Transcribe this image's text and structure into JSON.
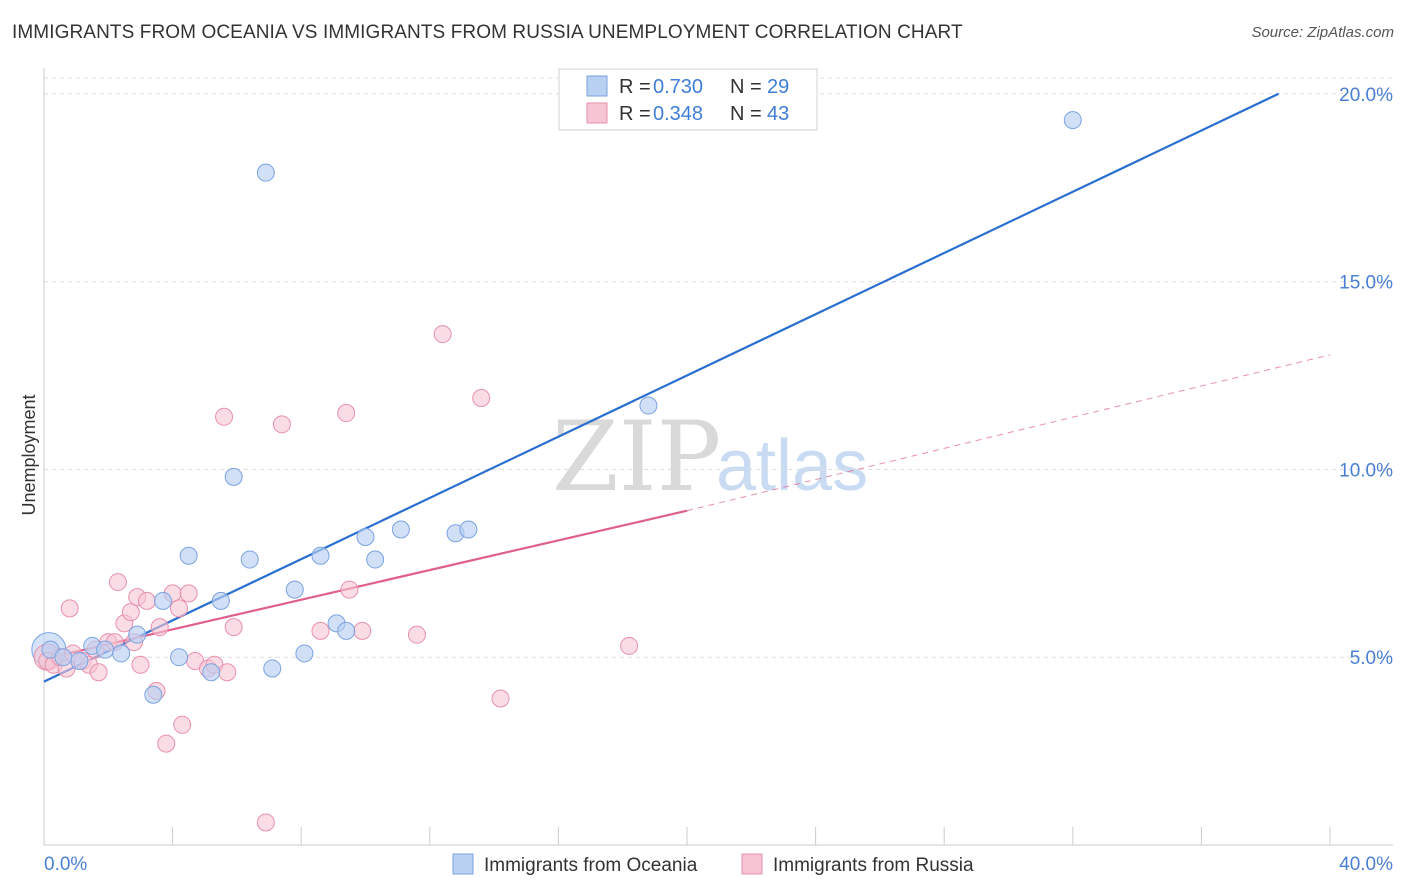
{
  "title": "IMMIGRANTS FROM OCEANIA VS IMMIGRANTS FROM RUSSIA UNEMPLOYMENT CORRELATION CHART",
  "source": "Source: ZipAtlas.com",
  "watermark": {
    "zip": "ZIP",
    "atlas": "atlas"
  },
  "colors": {
    "blue_fill": "#b8d0f2",
    "blue_stroke": "#7aa3e0",
    "blue_line": "#2a6fd0",
    "pink_fill": "#f7c4d4",
    "pink_stroke": "#e890ad",
    "pink_line": "#e0608a",
    "grid": "#dddddd",
    "axis_text": "#4a7fd4"
  },
  "legend": {
    "rows": [
      {
        "r_label": "R = ",
        "r_value": "0.730",
        "n_label": "N = ",
        "n_value": "29"
      },
      {
        "r_label": "R = ",
        "r_value": "0.348",
        "n_label": "N = ",
        "n_value": "43"
      }
    ]
  },
  "chart_data": {
    "type": "scatter",
    "title": "IMMIGRANTS FROM OCEANIA VS IMMIGRANTS FROM RUSSIA UNEMPLOYMENT CORRELATION CHART",
    "xlabel": "",
    "ylabel": "Unemployment",
    "xlim": [
      0,
      40
    ],
    "ylim": [
      0,
      20.5
    ],
    "x_tick_labels": [
      "0.0%",
      "40.0%"
    ],
    "y_ticks": [
      5,
      10,
      15,
      20
    ],
    "y_tick_labels": [
      "5.0%",
      "10.0%",
      "15.0%",
      "20.0%"
    ],
    "series": [
      {
        "name": "Immigrants from Oceania",
        "color": "blue",
        "R": 0.73,
        "N": 29,
        "trend": {
          "x": [
            0,
            38.4
          ],
          "y": [
            4.35,
            20.0
          ],
          "dashed_extension": false
        },
        "points": [
          [
            0.2,
            5.2
          ],
          [
            0.6,
            5.0
          ],
          [
            1.1,
            4.9
          ],
          [
            1.5,
            5.3
          ],
          [
            1.9,
            5.2
          ],
          [
            2.4,
            5.1
          ],
          [
            2.9,
            5.6
          ],
          [
            3.4,
            4.0
          ],
          [
            3.7,
            6.5
          ],
          [
            4.2,
            5.0
          ],
          [
            4.5,
            7.7
          ],
          [
            5.2,
            4.6
          ],
          [
            5.5,
            6.5
          ],
          [
            5.9,
            9.8
          ],
          [
            6.4,
            7.6
          ],
          [
            6.9,
            17.9
          ],
          [
            7.1,
            4.7
          ],
          [
            7.8,
            6.8
          ],
          [
            8.1,
            5.1
          ],
          [
            8.6,
            7.7
          ],
          [
            9.1,
            5.9
          ],
          [
            9.4,
            5.7
          ],
          [
            10.0,
            8.2
          ],
          [
            10.3,
            7.6
          ],
          [
            11.1,
            8.4
          ],
          [
            12.8,
            8.3
          ],
          [
            13.2,
            8.4
          ],
          [
            18.8,
            11.7
          ],
          [
            32.0,
            19.3
          ]
        ]
      },
      {
        "name": "Immigrants from Russia",
        "color": "pink",
        "R": 0.348,
        "N": 43,
        "trend": {
          "x": [
            0,
            20.0
          ],
          "y": [
            4.95,
            8.9
          ],
          "dashed_extension": {
            "x": [
              20.0,
              40.0
            ],
            "y": [
              8.9,
              13.05
            ]
          }
        },
        "points": [
          [
            0.1,
            4.9
          ],
          [
            0.3,
            4.8
          ],
          [
            0.5,
            5.0
          ],
          [
            0.7,
            4.7
          ],
          [
            0.9,
            5.1
          ],
          [
            0.8,
            6.3
          ],
          [
            1.2,
            4.9
          ],
          [
            1.4,
            4.8
          ],
          [
            1.6,
            5.2
          ],
          [
            1.7,
            4.6
          ],
          [
            2.0,
            5.4
          ],
          [
            2.2,
            5.4
          ],
          [
            2.3,
            7.0
          ],
          [
            2.5,
            5.9
          ],
          [
            2.7,
            6.2
          ],
          [
            2.8,
            5.4
          ],
          [
            2.9,
            6.6
          ],
          [
            3.0,
            4.8
          ],
          [
            3.2,
            6.5
          ],
          [
            3.5,
            4.1
          ],
          [
            3.6,
            5.8
          ],
          [
            3.8,
            2.7
          ],
          [
            4.0,
            6.7
          ],
          [
            4.2,
            6.3
          ],
          [
            4.3,
            3.2
          ],
          [
            4.5,
            6.7
          ],
          [
            4.7,
            4.9
          ],
          [
            5.1,
            4.7
          ],
          [
            5.3,
            4.8
          ],
          [
            5.6,
            11.4
          ],
          [
            5.7,
            4.6
          ],
          [
            5.9,
            5.8
          ],
          [
            6.9,
            0.6
          ],
          [
            7.4,
            11.2
          ],
          [
            8.6,
            5.7
          ],
          [
            9.4,
            11.5
          ],
          [
            9.5,
            6.8
          ],
          [
            9.9,
            5.7
          ],
          [
            11.6,
            5.6
          ],
          [
            12.4,
            13.6
          ],
          [
            13.6,
            11.9
          ],
          [
            14.2,
            3.9
          ],
          [
            18.2,
            5.3
          ]
        ]
      }
    ]
  }
}
